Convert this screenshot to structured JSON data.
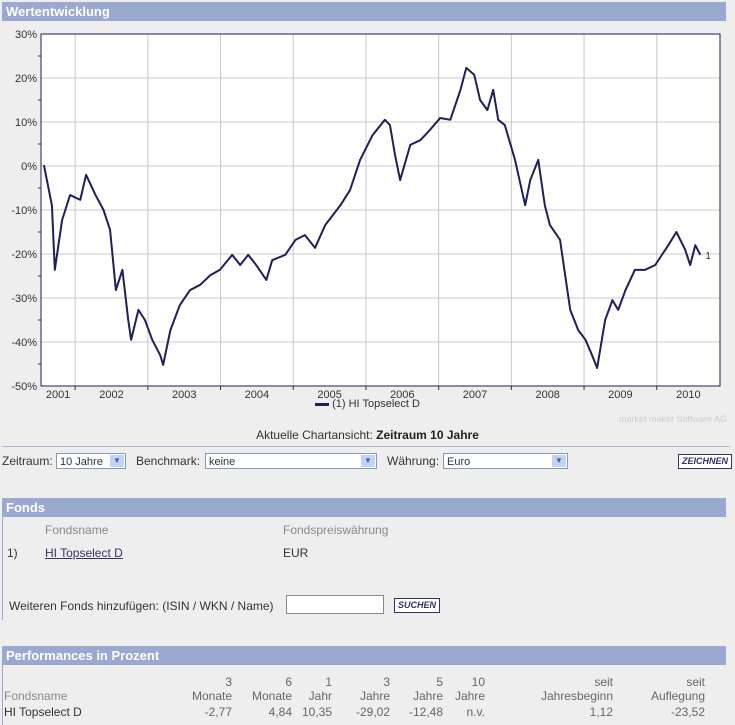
{
  "sections": {
    "chart_title": "Wertentwicklung",
    "fonds_title": "Fonds",
    "perf_title": "Performances in Prozent"
  },
  "chart_data": {
    "type": "line",
    "title": "Wertentwicklung",
    "xlabel": "",
    "ylabel": "",
    "ylim": [
      -50,
      30
    ],
    "xlim": [
      2001.53,
      2010.87
    ],
    "yticks": [
      "30%",
      "20%",
      "10%",
      "0%",
      "-10%",
      "-20%",
      "-30%",
      "-40%",
      "-50%"
    ],
    "ytick_values": [
      30,
      20,
      10,
      0,
      -10,
      -20,
      -30,
      -40,
      -50
    ],
    "xticks": [
      "2001",
      "2002",
      "2003",
      "2004",
      "2005",
      "2006",
      "2007",
      "2008",
      "2009",
      "2010"
    ],
    "grid": true,
    "legend_position": "bottom",
    "series": [
      {
        "name": "(1) HI Topselect D",
        "end_label": "1",
        "color": "#1f1f5a",
        "x": [
          2001.57,
          2001.68,
          2001.72,
          2001.82,
          2001.93,
          2002.07,
          2002.15,
          2002.28,
          2002.39,
          2002.48,
          2002.56,
          2002.65,
          2002.73,
          2002.77,
          2002.87,
          2002.96,
          2003.06,
          2003.17,
          2003.21,
          2003.31,
          2003.44,
          2003.58,
          2003.72,
          2003.86,
          2003.99,
          2004.16,
          2004.27,
          2004.38,
          2004.49,
          2004.63,
          2004.71,
          2004.89,
          2005.03,
          2005.16,
          2005.3,
          2005.44,
          2005.65,
          2005.78,
          2005.92,
          2006.09,
          2006.26,
          2006.33,
          2006.4,
          2006.47,
          2006.61,
          2006.75,
          2006.88,
          2007.02,
          2007.16,
          2007.3,
          2007.38,
          2007.49,
          2007.57,
          2007.67,
          2007.75,
          2007.82,
          2007.91,
          2008.05,
          2008.19,
          2008.26,
          2008.37,
          2008.46,
          2008.53,
          2008.67,
          2008.74,
          2008.81,
          2008.92,
          2009.02,
          2009.11,
          2009.18,
          2009.29,
          2009.39,
          2009.47,
          2009.57,
          2009.7,
          2009.84,
          2009.98,
          2010.07,
          2010.16,
          2010.27,
          2010.39,
          2010.46,
          2010.53,
          2010.6
        ],
        "y": [
          0.2,
          -8.9,
          -23.6,
          -12.3,
          -6.6,
          -7.7,
          -2,
          -6.6,
          -10,
          -14.5,
          -28.2,
          -23.6,
          -35,
          -39.5,
          -32.7,
          -35,
          -39.5,
          -43,
          -45.2,
          -37.3,
          -31.6,
          -28.2,
          -27,
          -24.8,
          -23.6,
          -20.2,
          -22.5,
          -20.2,
          -22.5,
          -25.9,
          -21.4,
          -20.2,
          -16.8,
          -15.7,
          -18.6,
          -13.4,
          -8.9,
          -5.5,
          1.4,
          7,
          10.5,
          9.3,
          2.5,
          -3.2,
          4.8,
          5.9,
          8.2,
          10.9,
          10.5,
          17.3,
          22.3,
          20.7,
          15,
          12.7,
          17.3,
          10.5,
          9.3,
          1.4,
          -8.9,
          -3.2,
          1.4,
          -8.9,
          -13.4,
          -16.8,
          -24.8,
          -32.7,
          -37.3,
          -39.5,
          -43,
          -45.9,
          -35,
          -30.5,
          -32.7,
          -28.2,
          -23.6,
          -23.6,
          -22.5,
          -20.2,
          -18,
          -15,
          -19,
          -22.5,
          -18,
          -20.2
        ]
      }
    ]
  },
  "watermark": "market maker Software AG",
  "current_view_label": "Aktuelle Chartansicht:",
  "current_view_value": "Zeitraum 10 Jahre",
  "controls": {
    "zeitraum_label": "Zeitraum:",
    "zeitraum_value": "10 Jahre",
    "benchmark_label": "Benchmark:",
    "benchmark_value": "keine",
    "waehrung_label": "Währung:",
    "waehrung_value": "Euro",
    "draw_button": "ZEICHNEN"
  },
  "fonds": {
    "col_name": "Fondsname",
    "col_currency": "Fondspreiswährung",
    "rows": [
      {
        "index": "1)",
        "name": "HI Topselect D",
        "currency": "EUR"
      }
    ],
    "add_label": "Weiteren Fonds hinzufügen: (ISIN / WKN / Name)",
    "add_value": "",
    "search_button": "SUCHEN"
  },
  "performance": {
    "headers": [
      [
        "",
        "Fondsname"
      ],
      [
        "3",
        "Monate"
      ],
      [
        "6",
        "Monate"
      ],
      [
        "1",
        "Jahr"
      ],
      [
        "3",
        "Jahre"
      ],
      [
        "5",
        "Jahre"
      ],
      [
        "10",
        "Jahre"
      ],
      [
        "seit",
        "Jahresbeginn"
      ],
      [
        "seit",
        "Auflegung"
      ]
    ],
    "rows": [
      {
        "name": "HI Topselect D",
        "values": [
          "-2,77",
          "4,84",
          "10,35",
          "-29,02",
          "-12,48",
          "n.v.",
          "1,12",
          "-23,52"
        ]
      }
    ]
  }
}
